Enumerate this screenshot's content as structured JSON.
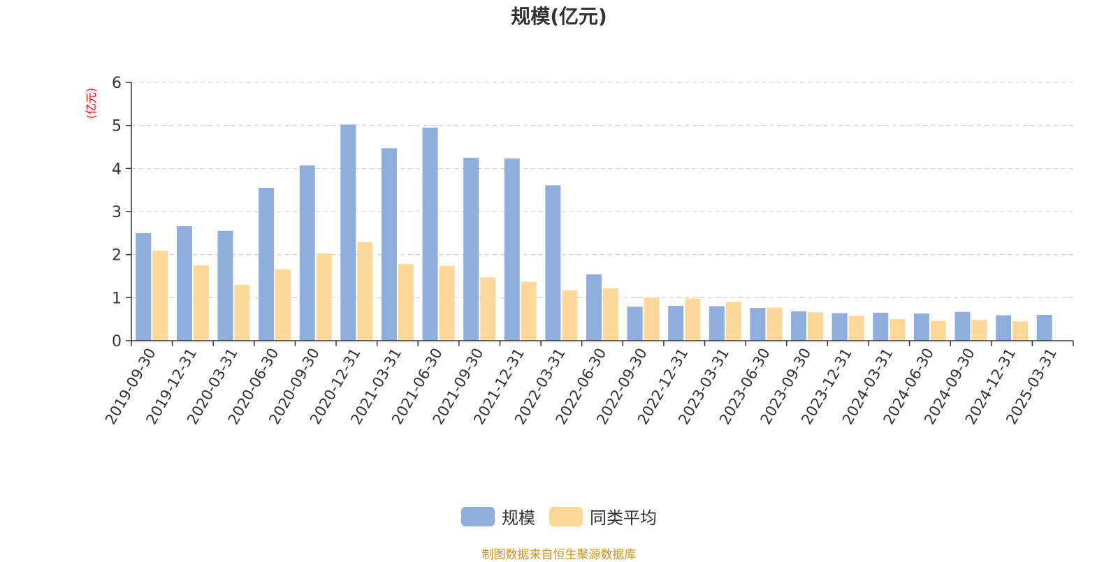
{
  "title": "规模(亿元)",
  "source_note": "制图数据来自恒生聚源数据库",
  "colors": {
    "series1": "#8eaedb",
    "series2": "#fed899",
    "axis": "#333333",
    "grid": "#cccccc",
    "unit": "#ff0000"
  },
  "chart_data": {
    "type": "bar",
    "title": "规模(亿元)",
    "ylabel": "(亿元)",
    "ylim": [
      0,
      6
    ],
    "yticks": [
      "0",
      "1",
      "2",
      "3",
      "4",
      "5",
      "6"
    ],
    "grid": "horizontal dashed",
    "legend": "bottom-center",
    "categories": [
      "2019-09-30",
      "2019-12-31",
      "2020-03-31",
      "2020-06-30",
      "2020-09-30",
      "2020-12-31",
      "2021-03-31",
      "2021-06-30",
      "2021-09-30",
      "2021-12-31",
      "2022-03-31",
      "2022-06-30",
      "2022-09-30",
      "2022-12-31",
      "2023-03-31",
      "2023-06-30",
      "2023-09-30",
      "2023-12-31",
      "2024-03-31",
      "2024-06-30",
      "2024-09-30",
      "2024-12-31",
      "2025-03-31"
    ],
    "series": [
      {
        "name": "规模",
        "values": [
          2.5,
          2.66,
          2.55,
          3.55,
          4.07,
          5.02,
          4.47,
          4.95,
          4.25,
          4.23,
          3.61,
          1.54,
          0.79,
          0.81,
          0.8,
          0.76,
          0.68,
          0.64,
          0.65,
          0.63,
          0.67,
          0.59,
          0.6
        ]
      },
      {
        "name": "同类平均",
        "values": [
          2.09,
          1.75,
          1.3,
          1.66,
          2.03,
          2.29,
          1.78,
          1.74,
          1.47,
          1.37,
          1.17,
          1.22,
          1.0,
          0.98,
          0.9,
          0.77,
          0.66,
          0.58,
          0.5,
          0.46,
          0.48,
          0.45,
          null
        ]
      }
    ]
  }
}
